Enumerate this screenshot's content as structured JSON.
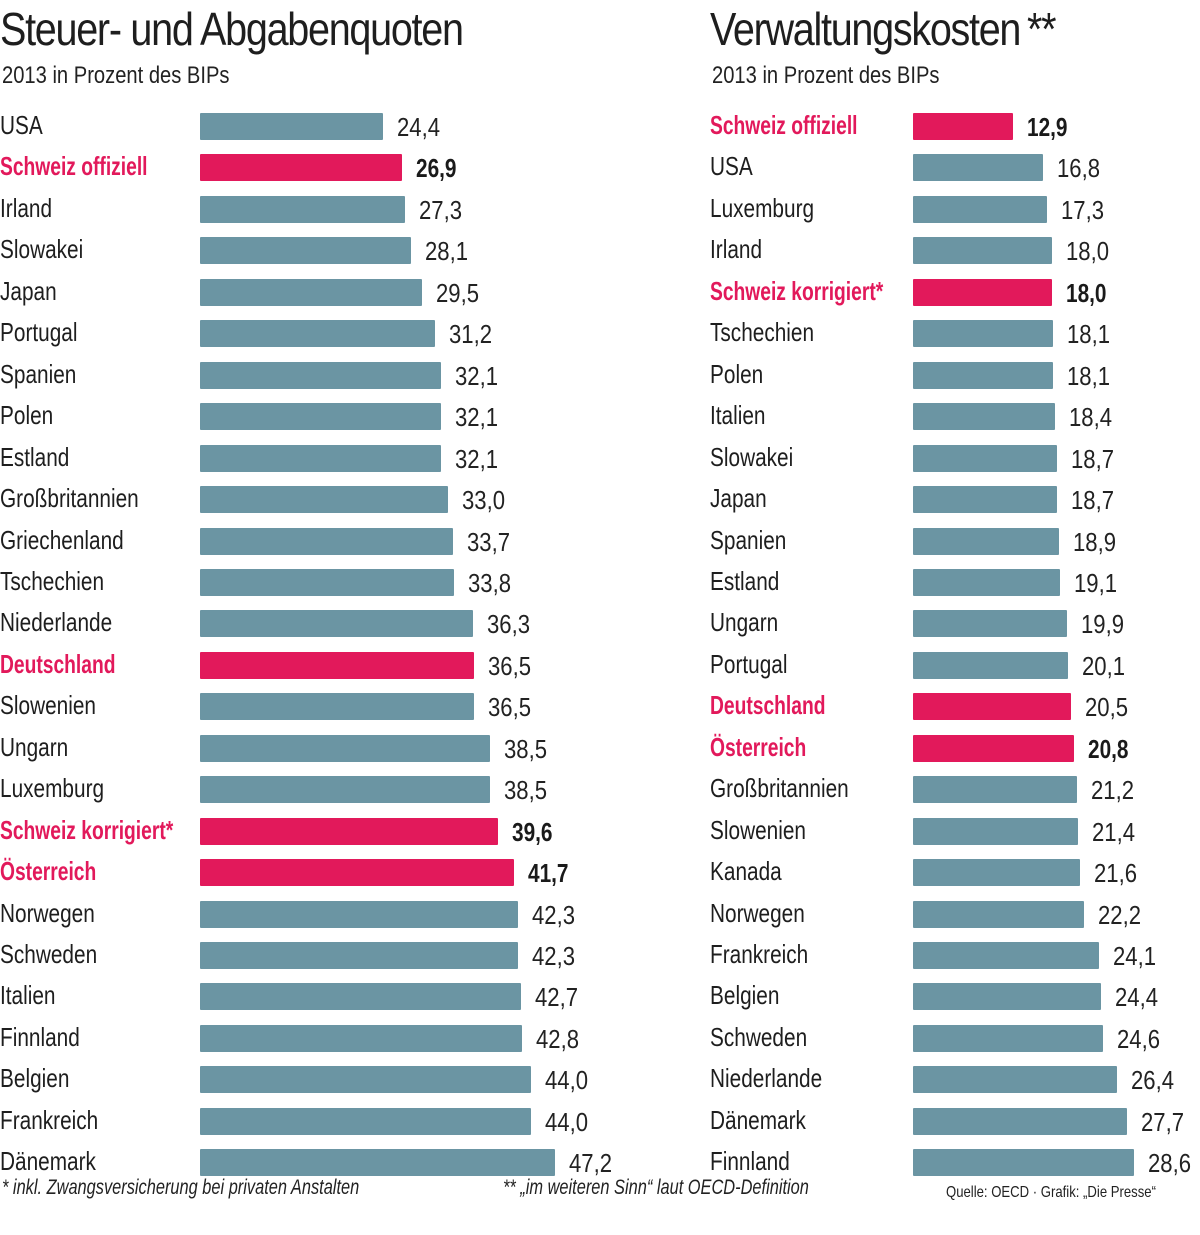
{
  "chart_data": [
    {
      "type": "bar",
      "orientation": "horizontal",
      "title": "Steuer- und Abgabenquoten",
      "subtitle": "2013 in Prozent des BIPs",
      "xlim": [
        0,
        50
      ],
      "grid": false,
      "categories": [
        "USA",
        "Schweiz offiziell",
        "Irland",
        "Slowakei",
        "Japan",
        "Portugal",
        "Spanien",
        "Polen",
        "Estland",
        "Großbritannien",
        "Griechenland",
        "Tschechien",
        "Niederlande",
        "Deutschland",
        "Slowenien",
        "Ungarn",
        "Luxemburg",
        "Schweiz korrigiert*",
        "Österreich",
        "Norwegen",
        "Schweden",
        "Italien",
        "Finnland",
        "Belgien",
        "Frankreich",
        "Dänemark"
      ],
      "values": [
        24.4,
        26.9,
        27.3,
        28.1,
        29.5,
        31.2,
        32.1,
        32.1,
        32.1,
        33.0,
        33.7,
        33.8,
        36.3,
        36.5,
        36.5,
        38.5,
        38.5,
        39.6,
        41.7,
        42.3,
        42.3,
        42.7,
        42.8,
        44.0,
        44.0,
        47.2
      ],
      "value_labels": [
        "24,4",
        "26,9",
        "27,3",
        "28,1",
        "29,5",
        "31,2",
        "32,1",
        "32,1",
        "32,1",
        "33,0",
        "33,7",
        "33,8",
        "36,3",
        "36,5",
        "36,5",
        "38,5",
        "38,5",
        "39,6",
        "41,7",
        "42,3",
        "42,3",
        "42,7",
        "42,8",
        "44,0",
        "44,0",
        "47,2"
      ],
      "highlighted": [
        "Schweiz offiziell",
        "Deutschland",
        "Schweiz korrigiert*",
        "Österreich"
      ],
      "bold_values": [
        "Schweiz offiziell",
        "Schweiz korrigiert*",
        "Österreich"
      ]
    },
    {
      "type": "bar",
      "orientation": "horizontal",
      "title": "Verwaltungskosten",
      "title_suffix": "**",
      "subtitle": "2013 in Prozent des BIPs",
      "xlim": [
        0,
        30
      ],
      "grid": false,
      "categories": [
        "Schweiz offiziell",
        "USA",
        "Luxemburg",
        "Irland",
        "Schweiz korrigiert*",
        "Tschechien",
        "Polen",
        "Italien",
        "Slowakei",
        "Japan",
        "Spanien",
        "Estland",
        "Ungarn",
        "Portugal",
        "Deutschland",
        "Österreich",
        "Großbritannien",
        "Slowenien",
        "Kanada",
        "Norwegen",
        "Frankreich",
        "Belgien",
        "Schweden",
        "Niederlande",
        "Dänemark",
        "Finnland"
      ],
      "values": [
        12.9,
        16.8,
        17.3,
        18.0,
        18.0,
        18.1,
        18.1,
        18.4,
        18.7,
        18.7,
        18.9,
        19.1,
        19.9,
        20.1,
        20.5,
        20.8,
        21.2,
        21.4,
        21.6,
        22.2,
        24.1,
        24.4,
        24.6,
        26.4,
        27.7,
        28.6
      ],
      "value_labels": [
        "12,9",
        "16,8",
        "17,3",
        "18,0",
        "18,0",
        "18,1",
        "18,1",
        "18,4",
        "18,7",
        "18,7",
        "18,9",
        "19,1",
        "19,9",
        "20,1",
        "20,5",
        "20,8",
        "21,2",
        "21,4",
        "21,6",
        "22,2",
        "24,1",
        "24,4",
        "24,6",
        "26,4",
        "27,7",
        "28,6"
      ],
      "highlighted": [
        "Schweiz offiziell",
        "Schweiz korrigiert*",
        "Deutschland",
        "Österreich"
      ],
      "bold_values": [
        "Schweiz offiziell",
        "Schweiz korrigiert*",
        "Österreich"
      ]
    }
  ],
  "footnotes": {
    "note1": "* inkl. Zwangsversicherung bei privaten Anstalten",
    "note2": "** „im weiteren Sinn“ laut OECD-Definition",
    "source": "Quelle: OECD · Grafik: „Die Presse“"
  },
  "colors": {
    "bar": "#6b95a3",
    "highlight": "#e2195b",
    "text": "#222222"
  }
}
